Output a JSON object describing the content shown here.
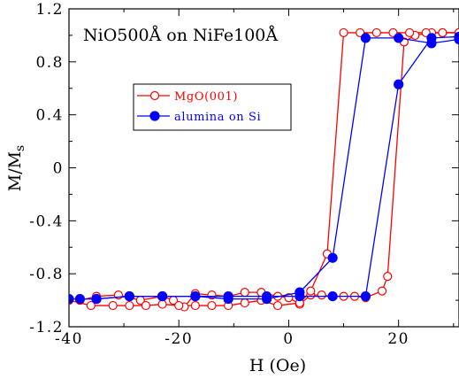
{
  "chart_data": {
    "type": "line",
    "annotation": "NiO500Å  on  NiFe100Å",
    "xlabel": "H  (Oe)",
    "ylabel": "M/M",
    "ylabel_subscript": "s",
    "xlim": [
      -40,
      31
    ],
    "ylim": [
      -1.2,
      1.2
    ],
    "xticks": [
      -40,
      -20,
      0,
      20
    ],
    "xtick_labels": [
      "-40",
      "-20",
      "0",
      "20"
    ],
    "yticks": [
      1.2,
      0.8,
      0.4,
      0,
      -0.4,
      -0.8,
      -1.2
    ],
    "ytick_labels": [
      "1.2",
      "0.8",
      "0.4",
      "0",
      "-0.4",
      "-0.8",
      "-1.2"
    ],
    "grid": false,
    "legend_position": "upper-left",
    "series": [
      {
        "name": "MgO(001)",
        "color": "#ff0000",
        "marker": "open-circle",
        "x": [
          -38,
          -35,
          -31,
          -27,
          -23,
          -21,
          -19,
          -17,
          -14,
          -11,
          -8,
          -5,
          -2,
          0,
          2,
          4,
          6,
          8,
          10,
          12,
          14,
          17,
          18,
          21,
          23,
          26,
          28,
          31
        ],
        "y": [
          -1.0,
          -0.97,
          -0.96,
          -1.0,
          -0.97,
          -1.0,
          -1.05,
          -0.95,
          -0.96,
          -0.97,
          -0.94,
          -0.94,
          -0.97,
          -0.98,
          -1.03,
          -0.96,
          -0.96,
          -0.97,
          -0.97,
          -0.97,
          -0.98,
          -0.93,
          -0.82,
          0.95,
          1.0,
          1.02,
          1.02,
          1.02
        ],
        "x_return": [
          31,
          28,
          25,
          22,
          19,
          16,
          13,
          10,
          7,
          4,
          2,
          -2,
          -5,
          -8,
          -11,
          -14,
          -17,
          -20,
          -23,
          -26,
          -29,
          -32,
          -36,
          -40
        ],
        "y_return": [
          1.02,
          1.02,
          1.02,
          1.02,
          1.02,
          1.02,
          1.02,
          1.02,
          -0.65,
          -0.93,
          -1.02,
          -1.04,
          -1.0,
          -1.02,
          -1.04,
          -1.04,
          -1.04,
          -1.04,
          -1.03,
          -1.04,
          -1.04,
          -1.04,
          -1.04,
          -1.0
        ]
      },
      {
        "name": "alumina on Si",
        "color": "#0000ff",
        "marker": "filled-circle",
        "x": [
          -38,
          -35,
          -29,
          -23,
          -17,
          -11,
          -4,
          2,
          8,
          14,
          20,
          26,
          31
        ],
        "y": [
          -0.99,
          -0.99,
          -0.97,
          -0.97,
          -0.97,
          -0.97,
          -0.97,
          -0.97,
          -0.97,
          -0.97,
          0.63,
          0.98,
          0.99
        ],
        "x_return": [
          31,
          26,
          20,
          14,
          8,
          2,
          -4,
          -11,
          -17,
          -23,
          -29,
          -35,
          -40
        ],
        "y_return": [
          0.97,
          0.94,
          0.98,
          0.98,
          -0.68,
          -0.94,
          -0.99,
          -0.99,
          -0.97,
          -0.97,
          -0.97,
          -0.99,
          -0.99
        ]
      }
    ]
  }
}
